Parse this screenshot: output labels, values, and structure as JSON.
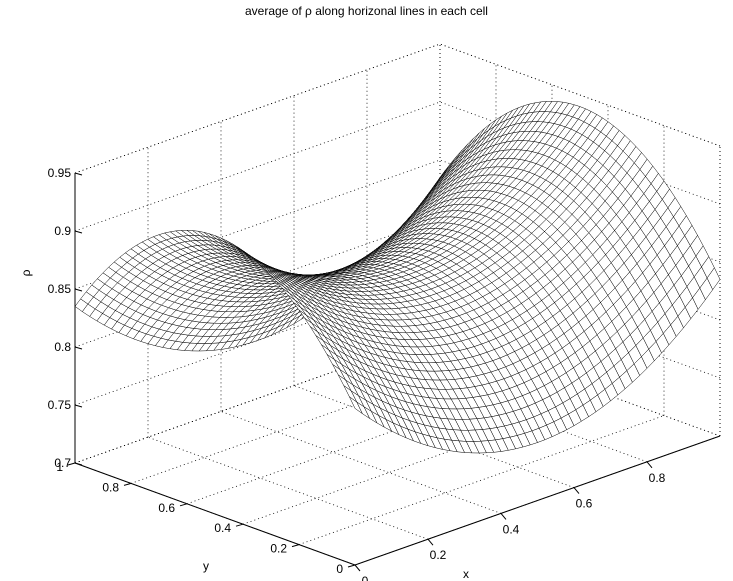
{
  "chart_data": {
    "type": "surface",
    "title": "average of ρ along horizonal lines in each cell",
    "xlabel": "x",
    "ylabel": "y",
    "zlabel": "ρ",
    "xlim": [
      0,
      1
    ],
    "ylim": [
      0,
      1
    ],
    "zlim": [
      0.7,
      0.95
    ],
    "x_ticks": [
      "0",
      "0.2",
      "0.4",
      "0.6",
      "0.8"
    ],
    "y_ticks": [
      "0",
      "0.2",
      "0.4",
      "0.6",
      "0.8",
      "1"
    ],
    "z_ticks": [
      "0.7",
      "0.75",
      "0.8",
      "0.85",
      "0.9",
      "0.95"
    ],
    "grid": true,
    "colors": {
      "mesh_face": "#ffffff",
      "mesh_edge": "#000000",
      "grid": "#000000"
    },
    "surface": {
      "model": "rho(x,y) = c + a*(2x-1)^2 - b*(2y-1)^2",
      "c": 0.855,
      "a": 0.085,
      "b": 0.105,
      "grid_x": 50,
      "grid_y": 50,
      "sample_values": [
        {
          "x": 0,
          "y": 0,
          "rho": 0.835
        },
        {
          "x": 1,
          "y": 1,
          "rho": 0.835
        },
        {
          "x": 0.5,
          "y": 0,
          "rho": 0.75
        },
        {
          "x": 0.5,
          "y": 1,
          "rho": 0.75
        },
        {
          "x": 0,
          "y": 0.5,
          "rho": 0.94
        },
        {
          "x": 1,
          "y": 0.5,
          "rho": 0.94
        },
        {
          "x": 0.5,
          "y": 0.5,
          "rho": 0.855
        }
      ]
    }
  }
}
